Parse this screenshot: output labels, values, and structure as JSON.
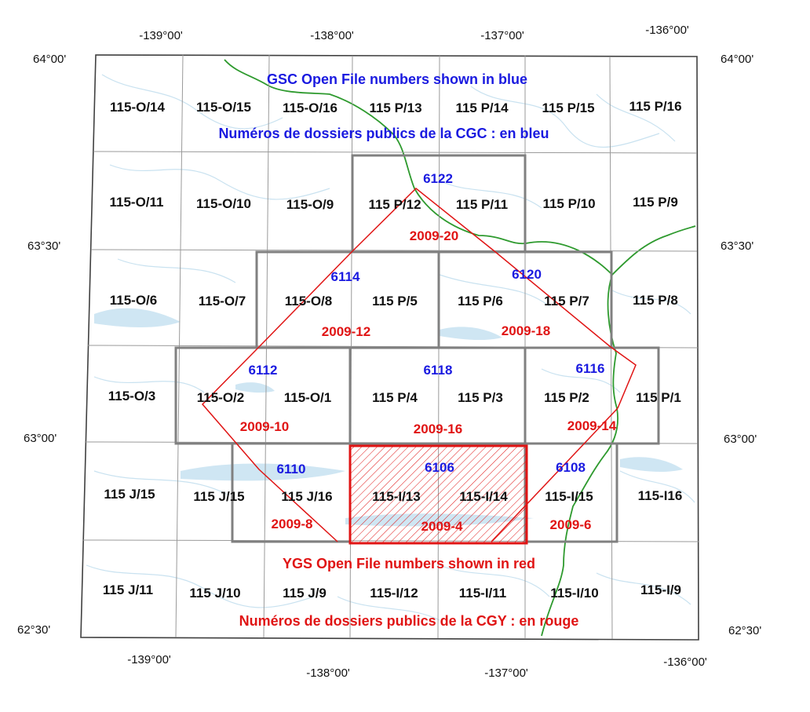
{
  "legend": {
    "gsc_note_en": "GSC Open File numbers shown in blue",
    "gsc_note_fr": "Numéros de dossiers publics de la CGC : en bleu",
    "ygs_note_en": "YGS Open File numbers shown in red",
    "ygs_note_fr": "Numéros de dossiers publics de la CGY : en rouge"
  },
  "colors": {
    "gsc": "#1a1ae0",
    "ygs": "#e01414",
    "river": "#2e9a2e",
    "water": "#cfe6f3",
    "frame": "#808080",
    "grid": "#9a9a9a"
  },
  "coordinates": {
    "top_longitudes": [
      "-139°00'",
      "-138°00'",
      "-137°00'",
      "-136°00'"
    ],
    "bottom_longitudes": [
      "-139°00'",
      "-138°00'",
      "-137°00'",
      "-136°00'"
    ],
    "left_latitudes": [
      "64°00'",
      "63°30'",
      "63°00'",
      "62°30'"
    ],
    "right_latitudes": [
      "64°00'",
      "63°30'",
      "63°00'",
      "62°30'"
    ]
  },
  "sheet_rows": [
    [
      "115-O/14",
      "115-O/15",
      "115-O/16",
      "115 P/13",
      "115 P/14",
      "115 P/15",
      "115 P/16"
    ],
    [
      "115-O/11",
      "115-O/10",
      "115-O/9",
      "115 P/12",
      "115 P/11",
      "115 P/10",
      "115 P/9"
    ],
    [
      "115-O/6",
      "115-O/7",
      "115-O/8",
      "115 P/5",
      "115 P/6",
      "115 P/7",
      "115 P/8"
    ],
    [
      "115-O/3",
      "115-O/2",
      "115-O/1",
      "115 P/4",
      "115 P/3",
      "115 P/2",
      "115 P/1"
    ],
    [
      "115 J/15",
      "115 J/15",
      "115 J/16",
      "115-I/13",
      "115-I/14",
      "115-I/15",
      "115-I16"
    ],
    [
      "115 J/11",
      "115 J/10",
      "115 J/9",
      "115-I/12",
      "115-I/11",
      "115-I/10",
      "115-I/9"
    ]
  ],
  "gsc_open_files": [
    "6122",
    "6114",
    "6120",
    "6112",
    "6118",
    "6116",
    "6110",
    "6106",
    "6108"
  ],
  "ygs_open_files": [
    "2009-20",
    "2009-12",
    "2009-18",
    "2009-10",
    "2009-16",
    "2009-14",
    "2009-8",
    "2009-4",
    "2009-6"
  ]
}
